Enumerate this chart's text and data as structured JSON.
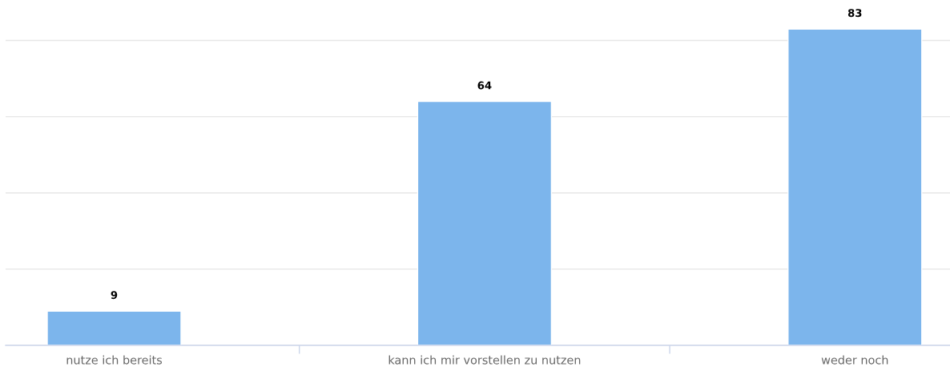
{
  "chart_data": {
    "type": "bar",
    "categories": [
      "nutze ich bereits",
      "kann ich mir vorstellen zu nutzen",
      "weder noch"
    ],
    "values": [
      9,
      64,
      83
    ],
    "color": "#7cb5ec",
    "data_labels": true,
    "yticks": [
      {
        "value": 0,
        "label": null
      },
      {
        "value": 20,
        "label": null
      },
      {
        "value": 40,
        "label": null
      },
      {
        "value": 60,
        "label": null
      },
      {
        "value": 80,
        "label": null
      }
    ],
    "grid": "y",
    "tick_labels": "x"
  }
}
